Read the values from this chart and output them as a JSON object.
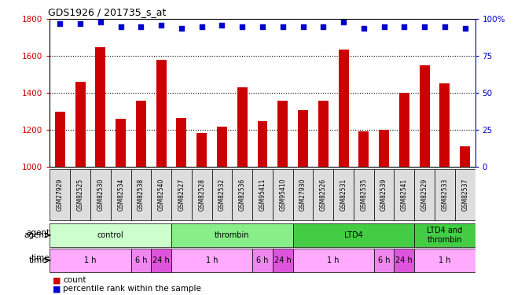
{
  "title": "GDS1926 / 201735_s_at",
  "samples": [
    "GSM27929",
    "GSM82525",
    "GSM82530",
    "GSM82534",
    "GSM82538",
    "GSM82540",
    "GSM82527",
    "GSM82528",
    "GSM82532",
    "GSM82536",
    "GSM95411",
    "GSM95410",
    "GSM27930",
    "GSM82526",
    "GSM82531",
    "GSM82535",
    "GSM82539",
    "GSM82541",
    "GSM82529",
    "GSM82533",
    "GSM82537"
  ],
  "counts": [
    1300,
    1460,
    1650,
    1260,
    1360,
    1580,
    1265,
    1185,
    1215,
    1430,
    1245,
    1360,
    1305,
    1360,
    1635,
    1190,
    1200,
    1400,
    1550,
    1450,
    1110
  ],
  "percentiles": [
    97,
    97,
    98,
    95,
    95,
    96,
    94,
    95,
    96,
    95,
    95,
    95,
    95,
    95,
    98,
    94,
    95,
    95,
    95,
    95,
    94
  ],
  "bar_color": "#cc0000",
  "dot_color": "#0000cc",
  "ylim_left": [
    1000,
    1800
  ],
  "ylim_right": [
    0,
    100
  ],
  "yticks_left": [
    1000,
    1200,
    1400,
    1600,
    1800
  ],
  "yticks_right": [
    0,
    25,
    50,
    75,
    100
  ],
  "agent_groups": [
    {
      "label": "control",
      "start": 0,
      "end": 6,
      "color": "#ccffcc"
    },
    {
      "label": "thrombin",
      "start": 6,
      "end": 12,
      "color": "#88ee88"
    },
    {
      "label": "LTD4",
      "start": 12,
      "end": 18,
      "color": "#44cc44"
    },
    {
      "label": "LTD4 and\nthrombin",
      "start": 18,
      "end": 21,
      "color": "#44cc44"
    }
  ],
  "time_groups": [
    {
      "label": "1 h",
      "start": 0,
      "end": 4,
      "color": "#ffaaff"
    },
    {
      "label": "6 h",
      "start": 4,
      "end": 5,
      "color": "#ee88ee"
    },
    {
      "label": "24 h",
      "start": 5,
      "end": 6,
      "color": "#dd55dd"
    },
    {
      "label": "1 h",
      "start": 6,
      "end": 10,
      "color": "#ffaaff"
    },
    {
      "label": "6 h",
      "start": 10,
      "end": 11,
      "color": "#ee88ee"
    },
    {
      "label": "24 h",
      "start": 11,
      "end": 12,
      "color": "#dd55dd"
    },
    {
      "label": "1 h",
      "start": 12,
      "end": 16,
      "color": "#ffaaff"
    },
    {
      "label": "6 h",
      "start": 16,
      "end": 17,
      "color": "#ee88ee"
    },
    {
      "label": "24 h",
      "start": 17,
      "end": 18,
      "color": "#dd55dd"
    },
    {
      "label": "1 h",
      "start": 18,
      "end": 21,
      "color": "#ffaaff"
    }
  ],
  "tick_box_color": "#dddddd",
  "legend_count_color": "#cc0000",
  "legend_dot_color": "#0000cc",
  "background_color": "#ffffff",
  "tick_label_color": "#cc0000",
  "right_tick_color": "#0000cc"
}
